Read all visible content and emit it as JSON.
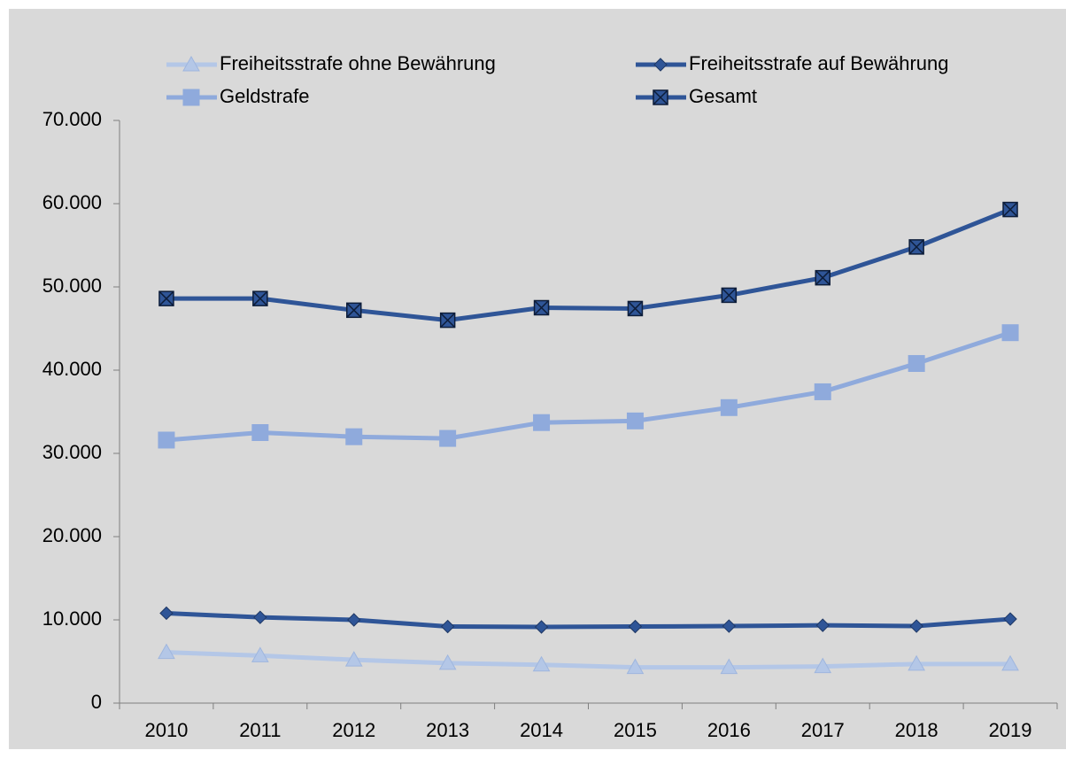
{
  "chart_data": {
    "type": "line",
    "categories": [
      "2010",
      "2011",
      "2012",
      "2013",
      "2014",
      "2015",
      "2016",
      "2017",
      "2018",
      "2019"
    ],
    "series": [
      {
        "name": "Freiheitsstrafe ohne Bewährung",
        "color": "#b4c7e7",
        "marker": "triangle",
        "values": [
          6100,
          5700,
          5200,
          4800,
          4600,
          4300,
          4300,
          4400,
          4700,
          4700
        ]
      },
      {
        "name": "Freiheitsstrafe auf Bewährung",
        "color": "#2f5597",
        "marker": "diamond",
        "values": [
          10800,
          10300,
          10000,
          9200,
          9150,
          9200,
          9250,
          9350,
          9250,
          10100
        ]
      },
      {
        "name": "Geldstrafe",
        "color": "#8faadc",
        "marker": "square",
        "values": [
          31600,
          32500,
          32000,
          31800,
          33700,
          33900,
          35500,
          37400,
          40800,
          44500
        ]
      },
      {
        "name": "Gesamt",
        "color": "#2f5597",
        "marker": "boxx",
        "values": [
          48600,
          48600,
          47200,
          46000,
          47500,
          47400,
          49000,
          51100,
          54800,
          59300
        ]
      }
    ],
    "ylim": [
      0,
      70000
    ],
    "yticks": [
      0,
      {
        "value": 10000,
        "label": "10.000"
      },
      {
        "value": 20000,
        "label": "20.000"
      },
      {
        "value": 30000,
        "label": "30.000"
      },
      {
        "value": 40000,
        "label": "40.000"
      },
      {
        "value": 50000,
        "label": "50.000"
      },
      {
        "value": 60000,
        "label": "60.000"
      },
      {
        "value": 70000,
        "label": "70.000"
      }
    ],
    "grid": false,
    "legend": "top"
  }
}
